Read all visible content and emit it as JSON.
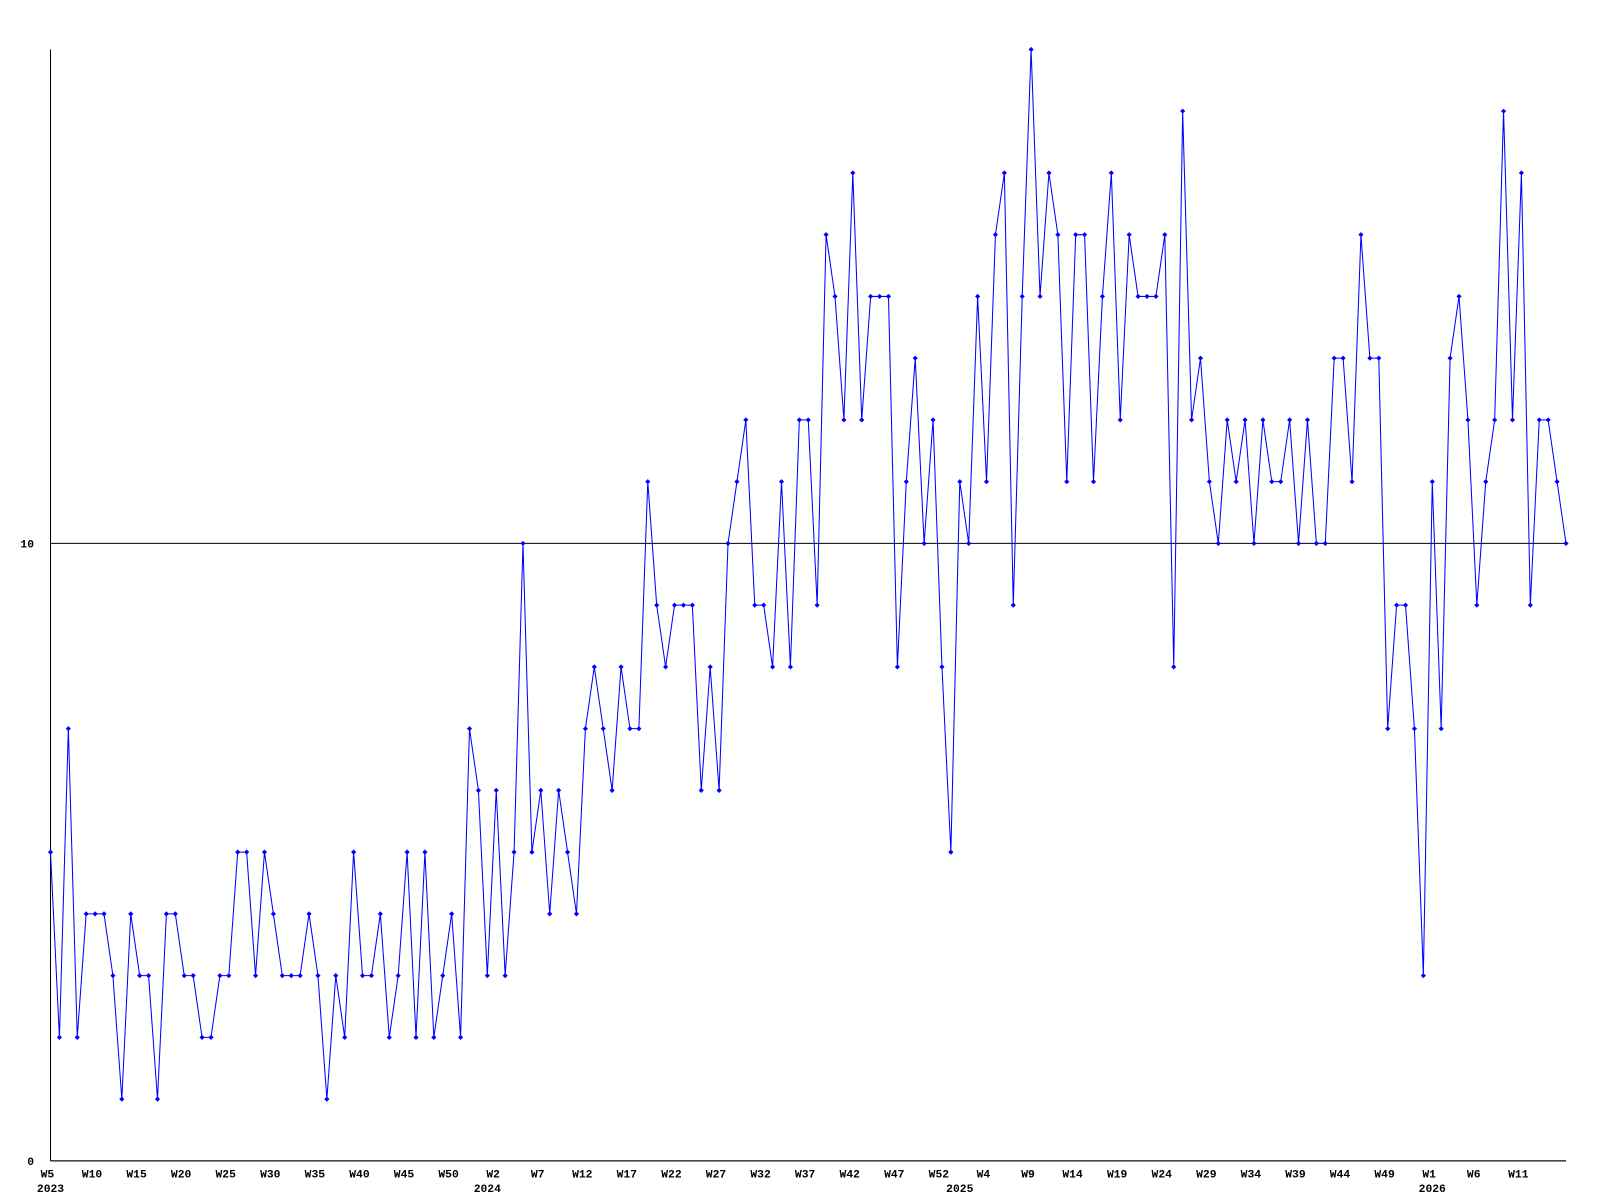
{
  "chart_data": {
    "type": "line",
    "categories": [
      "W5",
      null,
      null,
      null,
      null,
      "W10",
      null,
      null,
      null,
      null,
      "W15",
      null,
      null,
      null,
      null,
      "W20",
      null,
      null,
      null,
      null,
      "W25",
      null,
      null,
      null,
      null,
      "W30",
      null,
      null,
      null,
      null,
      "W35",
      null,
      null,
      null,
      null,
      "W40",
      null,
      null,
      null,
      null,
      "W45",
      null,
      null,
      null,
      null,
      "W50",
      null,
      null,
      null,
      null,
      "W2",
      null,
      null,
      null,
      null,
      "W7",
      null,
      null,
      null,
      null,
      "W12",
      null,
      null,
      null,
      null,
      "W17",
      null,
      null,
      null,
      null,
      "W22",
      null,
      null,
      null,
      null,
      "W27",
      null,
      null,
      null,
      null,
      "W32",
      null,
      null,
      null,
      null,
      "W37",
      null,
      null,
      null,
      null,
      "W42",
      null,
      null,
      null,
      null,
      "W47",
      null,
      null,
      null,
      null,
      "W52",
      null,
      null,
      null,
      null,
      "W4",
      null,
      null,
      null,
      null,
      "W9",
      null,
      null,
      null,
      null,
      "W14",
      null,
      null,
      null,
      null,
      "W19",
      null,
      null,
      null,
      null,
      "W24",
      null,
      null,
      null,
      null,
      "W29",
      null,
      null,
      null,
      null,
      "W34",
      null,
      null,
      null,
      null,
      "W39",
      null,
      null,
      null,
      null,
      "W44",
      null,
      null,
      null,
      null,
      "W49",
      null,
      null,
      null,
      null,
      "W1",
      null,
      null,
      null,
      null,
      "W6",
      null,
      null,
      null,
      null,
      "W11",
      null,
      null,
      null,
      null,
      null
    ],
    "year_labels": [
      {
        "index": 0,
        "label": "2023"
      },
      {
        "index": 49,
        "label": "2024"
      },
      {
        "index": 102,
        "label": "2025"
      },
      {
        "index": 155,
        "label": "2026"
      }
    ],
    "series": [
      {
        "color": "#0000ff",
        "values": [
          5,
          2,
          7,
          2,
          4,
          4,
          4,
          3,
          1,
          4,
          3,
          3,
          1,
          4,
          4,
          3,
          3,
          2,
          2,
          3,
          3,
          5,
          5,
          3,
          5,
          4,
          3,
          3,
          3,
          4,
          3,
          1,
          3,
          2,
          5,
          3,
          3,
          4,
          2,
          3,
          5,
          2,
          5,
          2,
          3,
          4,
          2,
          7,
          6,
          3,
          6,
          3,
          5,
          10,
          5,
          6,
          4,
          6,
          5,
          4,
          7,
          8,
          7,
          6,
          8,
          7,
          7,
          11,
          9,
          8,
          9,
          9,
          9,
          6,
          8,
          6,
          10,
          11,
          12,
          9,
          9,
          8,
          11,
          8,
          12,
          12,
          9,
          15,
          14,
          12,
          16,
          12,
          14,
          14,
          14,
          8,
          11,
          13,
          10,
          12,
          8,
          5,
          11,
          10,
          14,
          11,
          15,
          16,
          9,
          14,
          18,
          14,
          16,
          15,
          11,
          15,
          15,
          11,
          14,
          16,
          12,
          15,
          14,
          14,
          14,
          15,
          8,
          17,
          12,
          13,
          11,
          10,
          12,
          11,
          12,
          10,
          12,
          11,
          11,
          12,
          10,
          12,
          10,
          10,
          13,
          13,
          11,
          15,
          13,
          13,
          7,
          9,
          9,
          7,
          3,
          11,
          7,
          13,
          14,
          12,
          9,
          11,
          12,
          17,
          12,
          16,
          9,
          12,
          12,
          11,
          10
        ]
      }
    ],
    "ylim": [
      0,
      18
    ],
    "yticks": [
      0,
      10
    ],
    "grid": true
  }
}
